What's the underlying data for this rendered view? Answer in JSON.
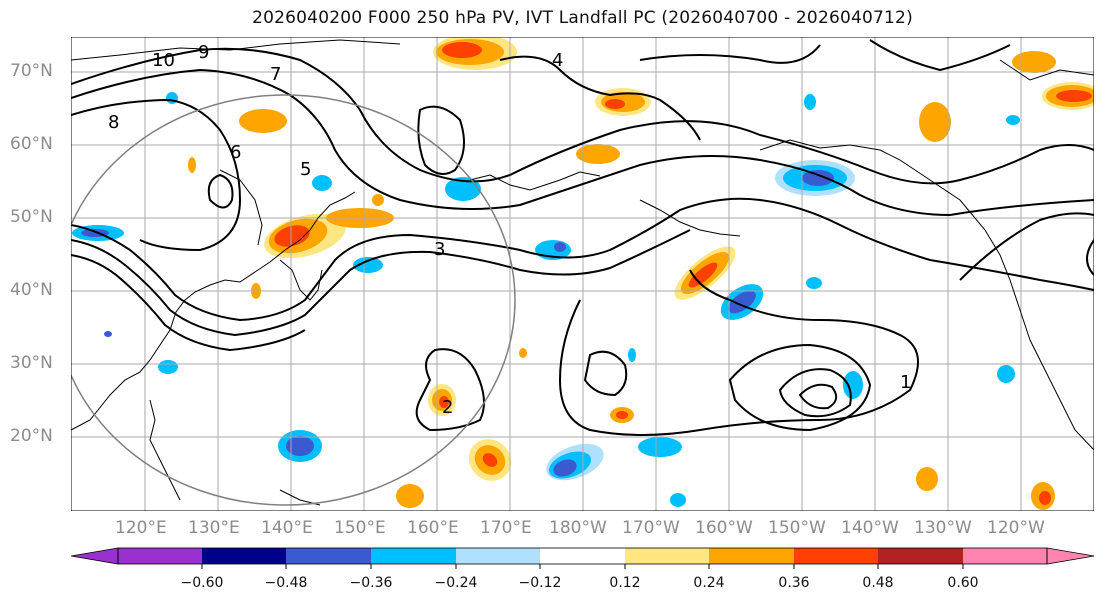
{
  "title": "2026040200 F000 250 hPa PV, IVT Landfall PC (2026040700 - 2026040712)",
  "lat_labels": [
    "70°N",
    "60°N",
    "50°N",
    "40°N",
    "30°N",
    "20°N"
  ],
  "lon_labels": [
    "120°E",
    "130°E",
    "140°E",
    "150°E",
    "160°E",
    "170°E",
    "180°W",
    "170°W",
    "160°W",
    "150°W",
    "140°W",
    "130°W",
    "120°W"
  ],
  "colorbar": {
    "tick_labels": [
      "−0.60",
      "−0.48",
      "−0.36",
      "−0.24",
      "−0.12",
      "0.12",
      "0.24",
      "0.36",
      "0.48",
      "0.60"
    ],
    "colors": [
      "#9b30d0",
      "#00008b",
      "#3a5bd0",
      "#00bfff",
      "#b0e0ff",
      "#ffffff",
      "#ffe680",
      "#ffa500",
      "#ff4000",
      "#b22222",
      "#ff85b0"
    ]
  },
  "contour_labels": [
    "10",
    "8",
    "9",
    "7",
    "6",
    "5",
    "4",
    "3",
    "2",
    "1"
  ],
  "colors": {
    "contour": "#000000",
    "grid": "#aaaaaa",
    "coast": "#000000",
    "circle": "#808080",
    "axis_label": "#8c8c8c"
  }
}
